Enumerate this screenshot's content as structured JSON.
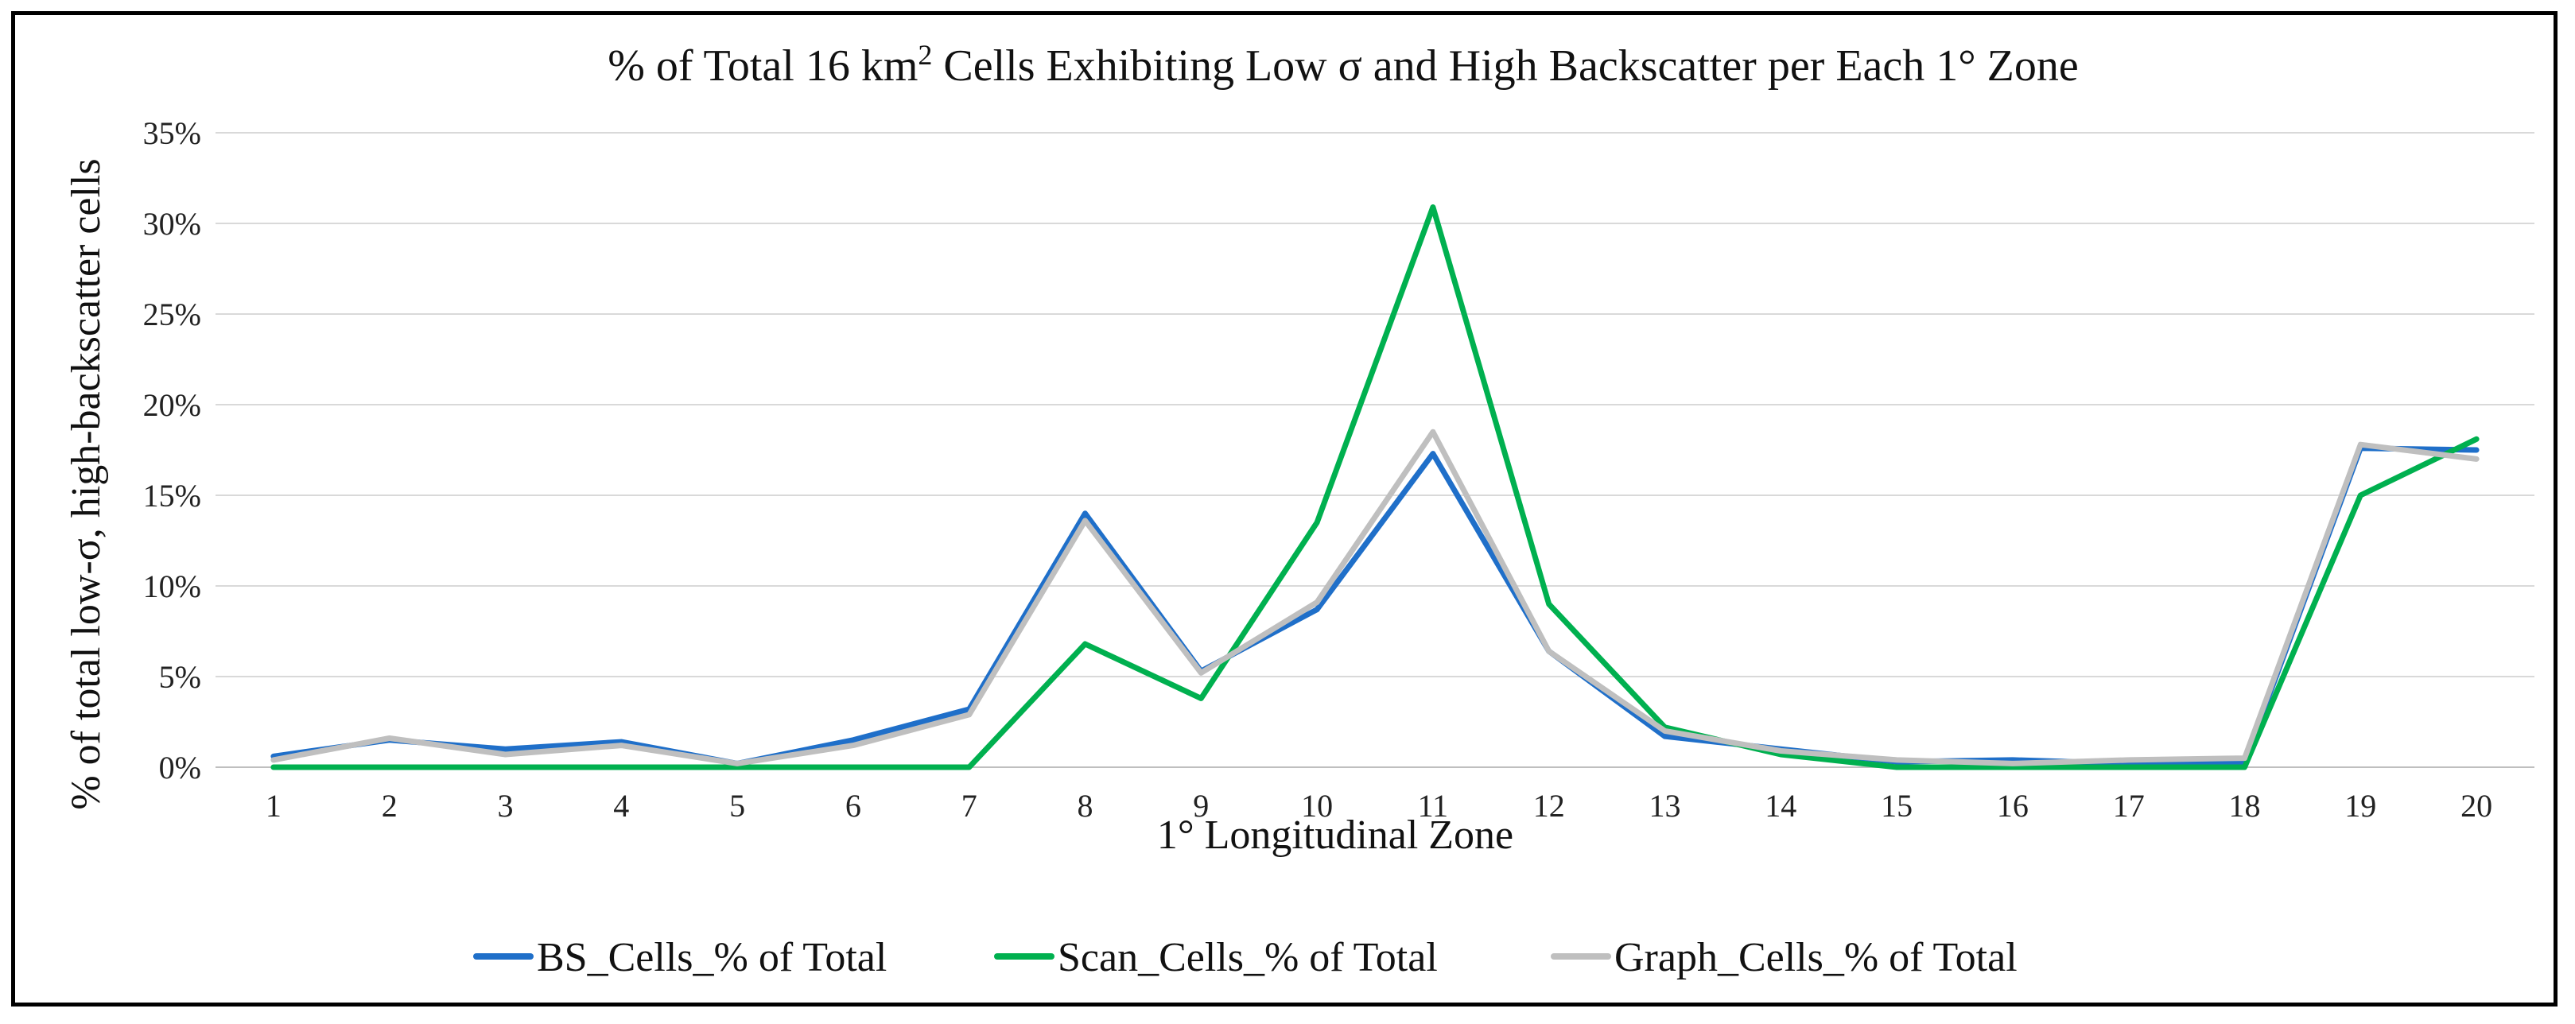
{
  "chart_data": {
    "type": "line",
    "title": {
      "prefix": "% of Total 16 km",
      "sup": "2",
      "suffix": " Cells Exhibiting Low σ and High Backscatter per Each 1° Zone"
    },
    "xlabel": "1° Longitudinal Zone",
    "ylabel": "% of total low-σ, high-backscatter cells",
    "categories": [
      "1",
      "2",
      "3",
      "4",
      "5",
      "6",
      "7",
      "8",
      "9",
      "10",
      "11",
      "12",
      "13",
      "14",
      "15",
      "16",
      "17",
      "18",
      "19",
      "20"
    ],
    "ylim": [
      0,
      35
    ],
    "yticks": [
      0,
      5,
      10,
      15,
      20,
      25,
      30,
      35
    ],
    "ytick_labels": [
      "0%",
      "5%",
      "10%",
      "15%",
      "20%",
      "25%",
      "30%",
      "35%"
    ],
    "grid": true,
    "legend_position": "bottom",
    "series": [
      {
        "name": "BS_Cells_% of Total",
        "color": "#1f6fc9",
        "values": [
          0.6,
          1.5,
          1.0,
          1.4,
          0.2,
          1.5,
          3.2,
          14.0,
          5.3,
          8.7,
          17.3,
          6.4,
          1.7,
          1.0,
          0.3,
          0.4,
          0.2,
          0.3,
          17.6,
          17.5
        ]
      },
      {
        "name": "Scan_Cells_% of Total",
        "color": "#00b04f",
        "values": [
          0.0,
          0.0,
          0.0,
          0.0,
          0.0,
          0.0,
          0.0,
          6.8,
          3.8,
          13.5,
          30.9,
          9.0,
          2.2,
          0.7,
          0.0,
          0.0,
          0.0,
          0.0,
          15.0,
          18.1
        ]
      },
      {
        "name": "Graph_Cells_% of Total",
        "color": "#bfbfbf",
        "values": [
          0.4,
          1.6,
          0.7,
          1.2,
          0.2,
          1.2,
          2.9,
          13.6,
          5.2,
          9.1,
          18.5,
          6.4,
          2.0,
          0.9,
          0.4,
          0.2,
          0.4,
          0.5,
          17.8,
          17.0
        ]
      }
    ]
  }
}
